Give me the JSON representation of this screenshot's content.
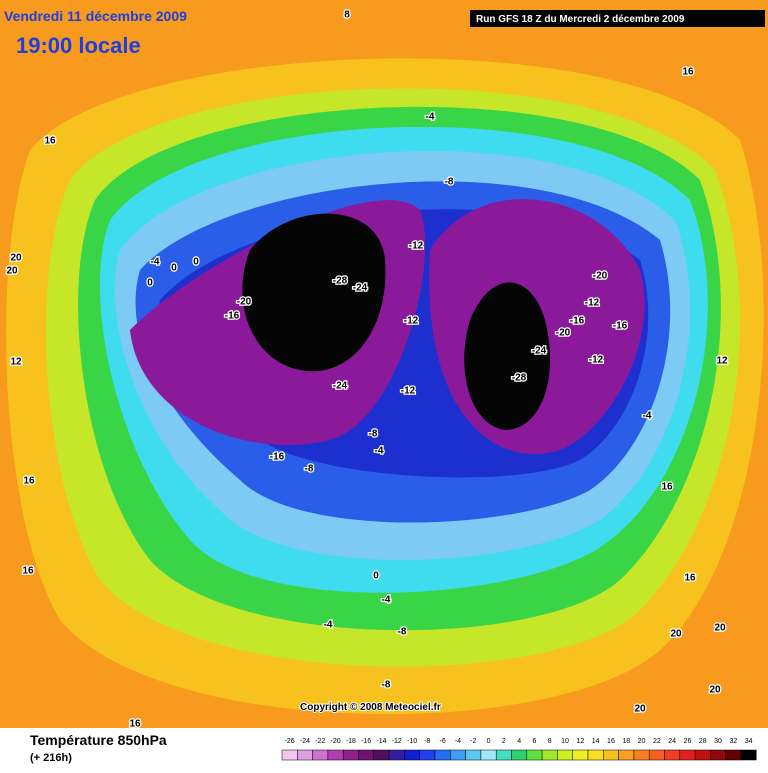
{
  "header": {
    "date": "Vendredi 11 décembre 2009",
    "time": "19:00 locale",
    "run": "Run GFS 18 Z du Mercredi 2 décembre 2009"
  },
  "map": {
    "contour_labels": [
      8,
      16,
      16,
      -4,
      -8,
      -12,
      -4,
      0,
      0,
      0,
      20,
      20,
      -28,
      -24,
      -20,
      -16,
      -12,
      -20,
      -12,
      -16,
      -16,
      -20,
      -24,
      -12,
      -28,
      12,
      12,
      -24,
      -12,
      -4,
      -8,
      -4,
      -16,
      -8,
      16,
      16,
      16,
      0,
      16,
      -4,
      -4,
      20,
      -8,
      20,
      -8,
      20,
      20,
      16
    ],
    "copyright": "Copyright © 2008 Meteociel.fr"
  },
  "footer": {
    "title": "Température 850hPa",
    "subtitle": "(+ 216h)",
    "scale": [
      -26,
      -24,
      -22,
      -20,
      -18,
      -16,
      -14,
      -12,
      -10,
      -8,
      -6,
      -4,
      -2,
      0,
      2,
      4,
      6,
      8,
      10,
      12,
      14,
      16,
      18,
      20,
      22,
      24,
      26,
      28,
      30,
      32,
      34
    ]
  }
}
